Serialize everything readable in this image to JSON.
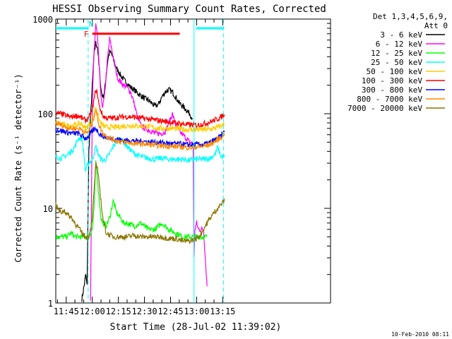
{
  "chart_data": {
    "type": "line",
    "title": "HESSI Observing Summary Count Rates, Corrected",
    "xlabel": "Start Time (28-Jul-02 11:39:02)",
    "ylabel": "Corrected Count Rate (s⁻¹ detector⁻¹)",
    "yscale": "log",
    "ylim": [
      1,
      1000
    ],
    "xlim_minutes": [
      39.0,
      197.0
    ],
    "x_ticks": [
      {
        "m": 45,
        "label": "11:45"
      },
      {
        "m": 60,
        "label": "12:00"
      },
      {
        "m": 75,
        "label": "12:15"
      },
      {
        "m": 90,
        "label": "12:30"
      },
      {
        "m": 105,
        "label": "12:45"
      },
      {
        "m": 120,
        "label": "13:00"
      },
      {
        "m": 135,
        "label": "13:15"
      }
    ],
    "y_ticks": [
      {
        "v": 1,
        "label": "1"
      },
      {
        "v": 10,
        "label": "10"
      },
      {
        "v": 100,
        "label": "100"
      },
      {
        "v": 1000,
        "label": "1000"
      }
    ],
    "legend_header": [
      "Det 1,3,4,5,6,9,",
      "Att 0"
    ],
    "legend_position": "right",
    "series": [
      {
        "name": "3 - 6 keV",
        "color": "#000000",
        "x": [
          54,
          55.5,
          56.2,
          57,
          58,
          59,
          60,
          61,
          62,
          63,
          64,
          65,
          66,
          67,
          68,
          69,
          70,
          71,
          72,
          73,
          74,
          75,
          76,
          78,
          80,
          82,
          84,
          86,
          88,
          90,
          92,
          94,
          96,
          98,
          100,
          102,
          104,
          106,
          108,
          110,
          112,
          114,
          116,
          117.5
        ],
        "y": [
          1.1,
          1.6,
          2.0,
          1.5,
          40,
          95,
          200,
          420,
          560,
          500,
          300,
          180,
          150,
          170,
          260,
          380,
          450,
          430,
          380,
          330,
          300,
          280,
          260,
          230,
          210,
          190,
          180,
          165,
          155,
          145,
          140,
          130,
          120,
          125,
          150,
          170,
          180,
          170,
          150,
          130,
          120,
          110,
          100,
          90
        ]
      },
      {
        "name": "6 - 12 keV",
        "color": "#ff00ff",
        "x": [
          59,
          60,
          61,
          62,
          63,
          64,
          65,
          66,
          67,
          68,
          69,
          70,
          71,
          72,
          73,
          74,
          75,
          76,
          78,
          80,
          82,
          84,
          86,
          88,
          90,
          92,
          94,
          96,
          98,
          100,
          102,
          104,
          106,
          108,
          110,
          112,
          114,
          116,
          118,
          118.5,
          119,
          120,
          121,
          124,
          126
        ],
        "y": [
          1.1,
          120,
          450,
          900,
          650,
          300,
          140,
          120,
          150,
          260,
          420,
          620,
          500,
          400,
          320,
          260,
          230,
          220,
          200,
          190,
          170,
          130,
          90,
          75,
          70,
          68,
          65,
          62,
          62,
          62,
          65,
          80,
          100,
          75,
          65,
          60,
          55,
          50,
          48,
          3,
          6,
          7,
          6,
          6,
          1.5
        ]
      },
      {
        "name": "12 - 25 keV",
        "color": "#00ff00",
        "x": [
          39,
          42,
          45,
          48,
          50,
          52,
          54,
          56,
          58,
          60,
          61,
          62,
          63,
          64,
          65,
          66,
          68,
          70,
          72,
          74,
          76,
          78,
          80,
          84,
          88,
          92,
          96,
          100,
          104,
          108,
          112,
          116,
          118.5,
          120,
          124,
          126
        ],
        "y": [
          5,
          5,
          5,
          5.5,
          5,
          5,
          5,
          5,
          5,
          6,
          10,
          30,
          20,
          12,
          8,
          7,
          6.5,
          8,
          12,
          9,
          8,
          7,
          7,
          6.5,
          7,
          6,
          6,
          7,
          6,
          5.5,
          5,
          5,
          5,
          5,
          5,
          5
        ]
      },
      {
        "name": "25 - 50 keV",
        "color": "#00ffff",
        "x": [
          39,
          42,
          45,
          48,
          50,
          52,
          54,
          55,
          56,
          58,
          60,
          61,
          62,
          63,
          64,
          66,
          68,
          70,
          72,
          74,
          76,
          78,
          80,
          84,
          88,
          92,
          96,
          100,
          104,
          108,
          112,
          116,
          118,
          120,
          124,
          128,
          131,
          132,
          133,
          134,
          136
        ],
        "y": [
          35,
          34,
          36,
          40,
          45,
          55,
          55,
          40,
          25,
          30,
          33,
          38,
          45,
          40,
          35,
          32,
          33,
          38,
          45,
          52,
          55,
          50,
          45,
          38,
          35,
          34,
          33,
          34,
          33,
          33,
          33,
          32,
          33,
          33,
          33,
          34,
          38,
          45,
          40,
          35,
          35
        ]
      },
      {
        "name": "50 - 100 keV",
        "color": "#ffcc00",
        "x": [
          39,
          42,
          45,
          48,
          50,
          52,
          54,
          56,
          58,
          60,
          61,
          62,
          63,
          64,
          66,
          68,
          70,
          74,
          78,
          82,
          86,
          90,
          94,
          98,
          102,
          106,
          110,
          114,
          118,
          122,
          126,
          130,
          134,
          136
        ],
        "y": [
          80,
          78,
          75,
          75,
          76,
          78,
          78,
          70,
          75,
          85,
          100,
          120,
          100,
          85,
          75,
          72,
          72,
          72,
          74,
          75,
          74,
          74,
          72,
          70,
          70,
          70,
          69,
          68,
          68,
          68,
          68,
          70,
          74,
          78
        ]
      },
      {
        "name": "100 - 300 keV",
        "color": "#ff0000",
        "x": [
          39,
          42,
          45,
          48,
          50,
          52,
          54,
          56,
          58,
          60,
          61,
          62,
          63,
          64,
          66,
          68,
          72,
          76,
          80,
          84,
          88,
          92,
          96,
          100,
          104,
          108,
          112,
          116,
          120,
          124,
          128,
          132,
          134,
          136
        ],
        "y": [
          100,
          100,
          95,
          92,
          95,
          95,
          90,
          85,
          90,
          110,
          140,
          180,
          160,
          120,
          95,
          90,
          90,
          92,
          93,
          92,
          90,
          88,
          86,
          84,
          82,
          80,
          78,
          76,
          76,
          78,
          82,
          88,
          92,
          98
        ]
      },
      {
        "name": "300 - 800 keV",
        "color": "#0000ff",
        "x": [
          39,
          42,
          45,
          48,
          50,
          52,
          54,
          56,
          58,
          60,
          62,
          64,
          66,
          70,
          74,
          78,
          82,
          86,
          90,
          94,
          98,
          102,
          106,
          110,
          114,
          118,
          122,
          126,
          130,
          134,
          136
        ],
        "y": [
          68,
          66,
          64,
          62,
          62,
          62,
          58,
          55,
          58,
          65,
          70,
          62,
          58,
          55,
          54,
          52,
          52,
          51,
          51,
          50,
          50,
          49,
          48,
          48,
          47,
          47,
          47,
          48,
          52,
          58,
          64
        ]
      },
      {
        "name": "800 - 7000 keV",
        "color": "#ff8800",
        "x": [
          39,
          42,
          45,
          48,
          50,
          52,
          54,
          56,
          58,
          60,
          61,
          62,
          63,
          64,
          66,
          70,
          74,
          78,
          82,
          86,
          90,
          94,
          98,
          102,
          106,
          110,
          114,
          118,
          122,
          126,
          130,
          134,
          136
        ],
        "y": [
          80,
          76,
          72,
          70,
          70,
          70,
          68,
          62,
          65,
          80,
          95,
          110,
          90,
          75,
          62,
          55,
          52,
          50,
          49,
          48,
          48,
          47,
          46,
          46,
          45,
          45,
          44,
          44,
          45,
          46,
          50,
          56,
          62
        ]
      },
      {
        "name": "7000 - 20000 keV",
        "color": "#8b7500",
        "x": [
          39,
          40,
          42,
          44,
          46,
          48,
          50,
          52,
          54,
          56,
          58,
          60,
          61,
          62,
          63,
          64,
          66,
          68,
          72,
          76,
          80,
          84,
          88,
          92,
          96,
          100,
          104,
          108,
          112,
          116,
          120,
          122,
          124,
          126,
          128,
          130,
          132,
          134,
          136
        ],
        "y": [
          11,
          10,
          9,
          9.5,
          8.5,
          8,
          7,
          6.2,
          5.5,
          5,
          5,
          8,
          15,
          30,
          25,
          18,
          8,
          5.5,
          5,
          5,
          5,
          5.2,
          5,
          5,
          5,
          5,
          4.8,
          4.8,
          4.5,
          4.5,
          4.8,
          5.2,
          6,
          7,
          8,
          9,
          10,
          11,
          12
        ]
      }
    ],
    "annotations": {
      "flare_bar": {
        "label": "F",
        "x_start": 60.0,
        "x_end": 110.3,
        "y": 700,
        "color": "#ff0000"
      },
      "night_bars": [
        {
          "x_start": 39.0,
          "x_end": 57.6,
          "y": 800,
          "color": "#00ffff"
        },
        {
          "x_start": 119.7,
          "x_end": 135.5,
          "y": 800,
          "color": "#00ffff"
        }
      ],
      "night_label": {
        "label": "N",
        "x": 58.0,
        "y": 800
      },
      "vertical_solid": [
        {
          "x": 118.5,
          "color": "#00ffff"
        }
      ],
      "vertical_dashed": [
        {
          "x": 57.6,
          "color": "#00ffff"
        },
        {
          "x": 135.5,
          "color": "#00ffff"
        }
      ]
    }
  },
  "footer_date": "10-Feb-2010 08:11"
}
